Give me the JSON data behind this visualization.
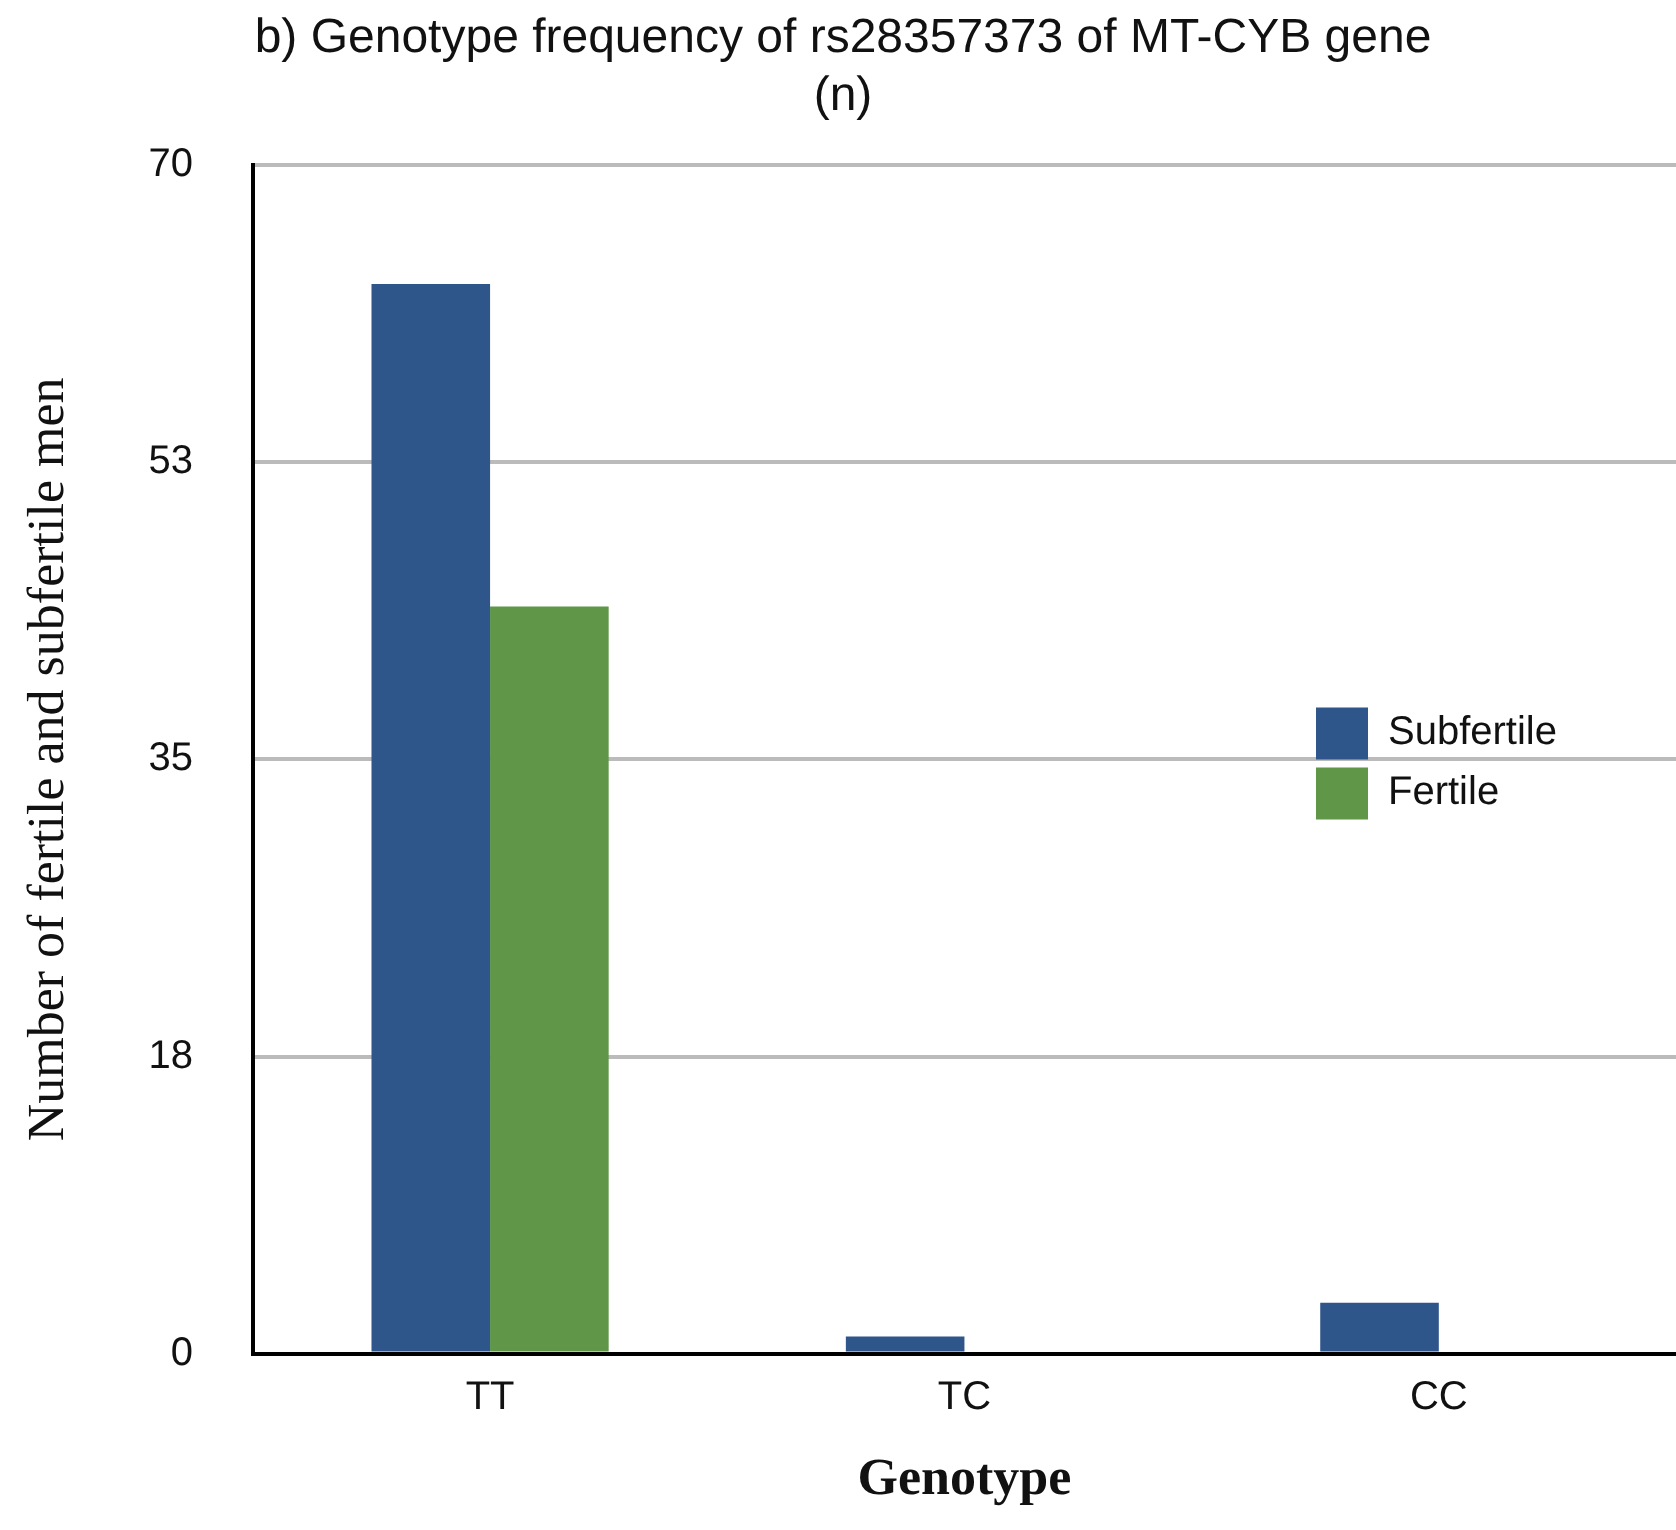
{
  "chart_data": {
    "type": "bar",
    "title": "b) Genotype frequency of rs28357373 of MT-CYB gene (n)",
    "xlabel": "Genotype",
    "ylabel": "Number of fertile and subfertile men",
    "categories": [
      "TT",
      "TC",
      "CC"
    ],
    "series": [
      {
        "name": "Subfertile",
        "color": "#2f568a",
        "values": [
          63,
          1,
          3
        ]
      },
      {
        "name": "Fertile",
        "color": "#5f9648",
        "values": [
          44,
          0,
          0
        ]
      }
    ],
    "ylim": [
      0,
      70
    ],
    "yticks": [
      0,
      {
        "value": 17.5,
        "label": "18"
      },
      35,
      {
        "value": 52.5,
        "label": "53"
      },
      70
    ],
    "grid": "y",
    "legend": "right"
  }
}
